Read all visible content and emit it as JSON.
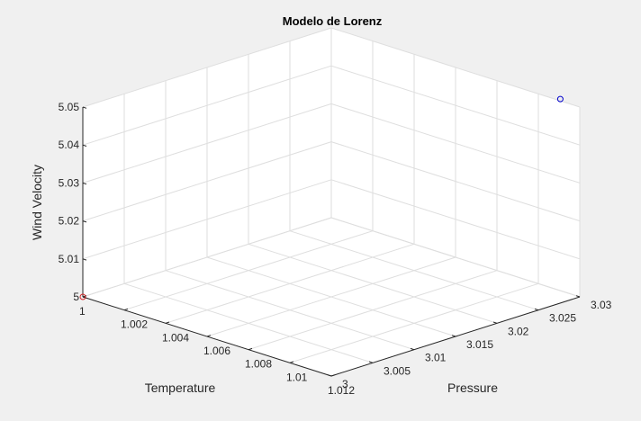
{
  "chart_data": {
    "type": "scatter3d",
    "title": "Modelo de Lorenz",
    "xlabel": "Temperature",
    "ylabel": "Pressure",
    "zlabel": "Wind Velocity",
    "xlim": [
      1,
      1.012
    ],
    "ylim": [
      3,
      3.03
    ],
    "zlim": [
      5,
      5.05
    ],
    "xticks": [
      1,
      1.002,
      1.004,
      1.006,
      1.008,
      1.01,
      1.012
    ],
    "xtick_labels": [
      "1",
      "1.002",
      "1.004",
      "1.006",
      "1.008",
      "1.01",
      "1.012"
    ],
    "yticks": [
      3,
      3.005,
      3.01,
      3.015,
      3.02,
      3.025,
      3.03
    ],
    "ytick_labels": [
      "3",
      "3.005",
      "3.01",
      "3.015",
      "3.02",
      "3.025",
      "3.03"
    ],
    "zticks": [
      5,
      5.01,
      5.02,
      5.03,
      5.04,
      5.05
    ],
    "ztick_labels": [
      "5",
      "5.01",
      "5.02",
      "5.03",
      "5.04",
      "5.05"
    ],
    "grid": true,
    "points": [
      {
        "x": 1,
        "y": 3,
        "z": 5,
        "color": "#d62728",
        "marker": "circle"
      },
      {
        "x": 1.0111,
        "y": 3.0299,
        "z": 5.0506,
        "color": "#0000cc",
        "marker": "circle"
      }
    ]
  }
}
